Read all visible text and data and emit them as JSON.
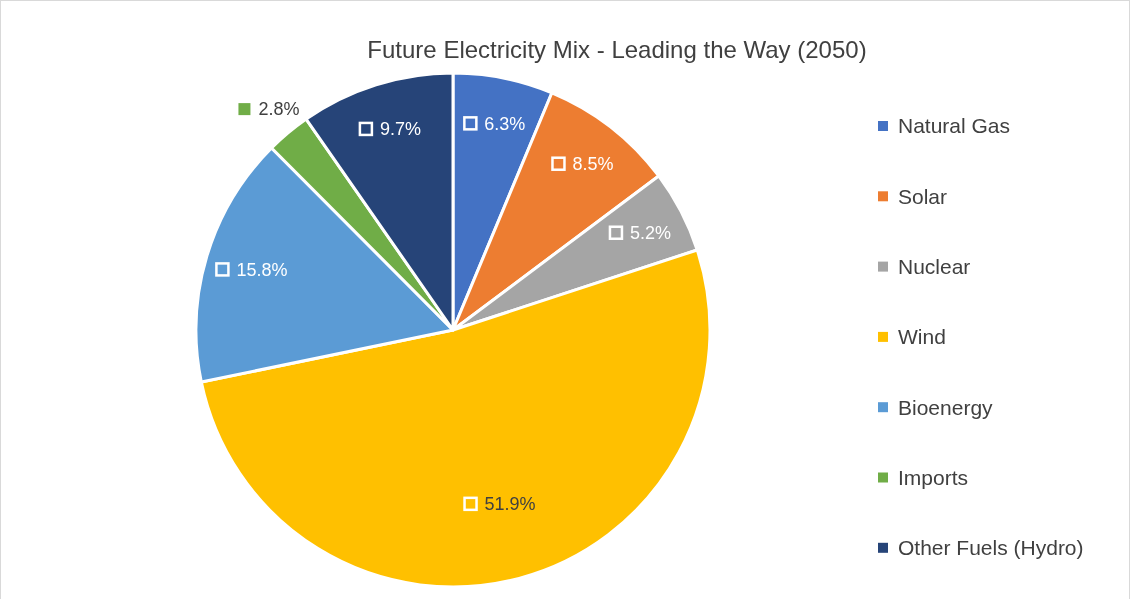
{
  "chart_data": {
    "type": "pie",
    "title": "Future Electricity Mix - Leading the Way (2050)",
    "categories": [
      "Natural Gas",
      "Solar",
      "Nuclear",
      "Wind",
      "Bioenergy",
      "Imports",
      "Other Fuels (Hydro)"
    ],
    "values": [
      6.3,
      8.5,
      5.2,
      51.9,
      15.8,
      2.8,
      9.7
    ],
    "value_labels": [
      "6.3%",
      "8.5%",
      "5.2%",
      "51.9%",
      "15.8%",
      "2.8%",
      "9.7%"
    ],
    "colors": [
      "#4472c4",
      "#ed7d31",
      "#a5a5a5",
      "#ffc000",
      "#5b9bd5",
      "#70ad47",
      "#264478"
    ],
    "legend": "right"
  }
}
